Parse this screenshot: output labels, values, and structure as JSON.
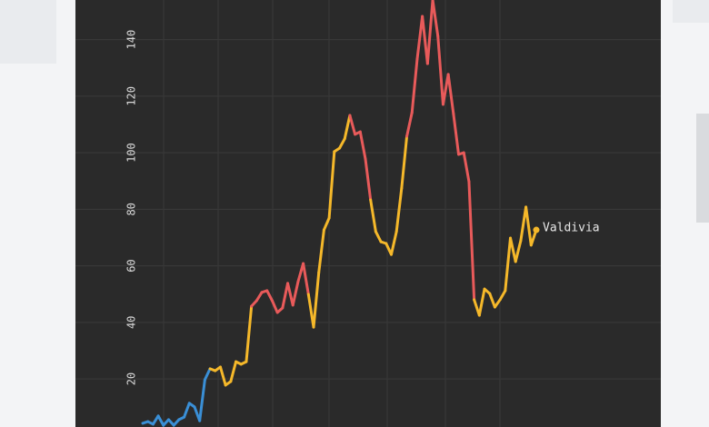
{
  "chart_data": {
    "type": "line",
    "categories": [
      null,
      null,
      null,
      null,
      null,
      null,
      null,
      null,
      null,
      null,
      null,
      null,
      null,
      null,
      null,
      null,
      null,
      null,
      null,
      null,
      null,
      null,
      null,
      null,
      null,
      null,
      null,
      null,
      null,
      null,
      null,
      null,
      null,
      null,
      null,
      null,
      null,
      null,
      null,
      null,
      null,
      null,
      null,
      null,
      null,
      null,
      null,
      null,
      null,
      null,
      null,
      null,
      null,
      null,
      null,
      null,
      null,
      null,
      null,
      null,
      null,
      null,
      null,
      null,
      null,
      null,
      null,
      null,
      null,
      null,
      null,
      null,
      null,
      null,
      null,
      null,
      null
    ],
    "series": [
      {
        "name": "Valdivia",
        "values": [
          4.3,
          4.9,
          4.0,
          6.9,
          3.6,
          5.6,
          3.6,
          5.6,
          6.5,
          11.4,
          10.1,
          5.2,
          19.7,
          23.6,
          22.9,
          24.2,
          17.8,
          19.1,
          26.1,
          25.2,
          26.1,
          45.7,
          47.7,
          50.6,
          51.2,
          47.7,
          43.5,
          45.1,
          53.8,
          46.1,
          54.4,
          60.8,
          49.9,
          38.3,
          57.6,
          72.7,
          76.9,
          100.4,
          101.6,
          104.9,
          113.2,
          106.5,
          107.4,
          97.8,
          83.3,
          72.1,
          68.5,
          67.9,
          64.0,
          72.1,
          87.5,
          105.8,
          114.2,
          133.1,
          148.2,
          131.5,
          154.0,
          141.2,
          117.1,
          127.7,
          113.8,
          99.4,
          100.0,
          89.8,
          48.0,
          42.5,
          51.8,
          50.2,
          45.4,
          48.0,
          51.2,
          69.8,
          61.5,
          68.9,
          80.8,
          67.3,
          72.7
        ],
        "point_colors": [
          "#3a8fd6",
          "#3a8fd6",
          "#3a8fd6",
          "#3a8fd6",
          "#3a8fd6",
          "#3a8fd6",
          "#3a8fd6",
          "#3a8fd6",
          "#3a8fd6",
          "#3a8fd6",
          "#3a8fd6",
          "#3a8fd6",
          "#3a8fd6",
          "#f5b82a",
          "#f5b82a",
          "#f5b82a",
          "#f5b82a",
          "#f5b82a",
          "#f5b82a",
          "#f5b82a",
          "#f5b82a",
          "#e85a5a",
          "#e85a5a",
          "#e85a5a",
          "#e85a5a",
          "#e85a5a",
          "#e85a5a",
          "#e85a5a",
          "#e85a5a",
          "#e85a5a",
          "#e85a5a",
          "#e85a5a",
          "#f5b82a",
          "#f5b82a",
          "#f5b82a",
          "#f5b82a",
          "#f5b82a",
          "#f5b82a",
          "#f5b82a",
          "#f5b82a",
          "#e85a5a",
          "#e85a5a",
          "#e85a5a",
          "#e85a5a",
          "#f5b82a",
          "#f5b82a",
          "#f5b82a",
          "#f5b82a",
          "#f5b82a",
          "#f5b82a",
          "#f5b82a",
          "#e85a5a",
          "#e85a5a",
          "#e85a5a",
          "#e85a5a",
          "#e85a5a",
          "#e85a5a",
          "#e85a5a",
          "#e85a5a",
          "#e85a5a",
          "#e85a5a",
          "#e85a5a",
          "#e85a5a",
          "#e85a5a",
          "#f5b82a",
          "#f5b82a",
          "#f5b82a",
          "#f5b82a",
          "#f5b82a",
          "#f5b82a",
          "#f5b82a",
          "#f5b82a",
          "#f5b82a",
          "#f5b82a",
          "#f5b82a",
          "#f5b82a",
          "#f5b82a"
        ]
      }
    ],
    "ylim": [
      3,
      154
    ],
    "yticks": [
      20,
      40,
      60,
      80,
      100,
      120,
      140
    ]
  }
}
